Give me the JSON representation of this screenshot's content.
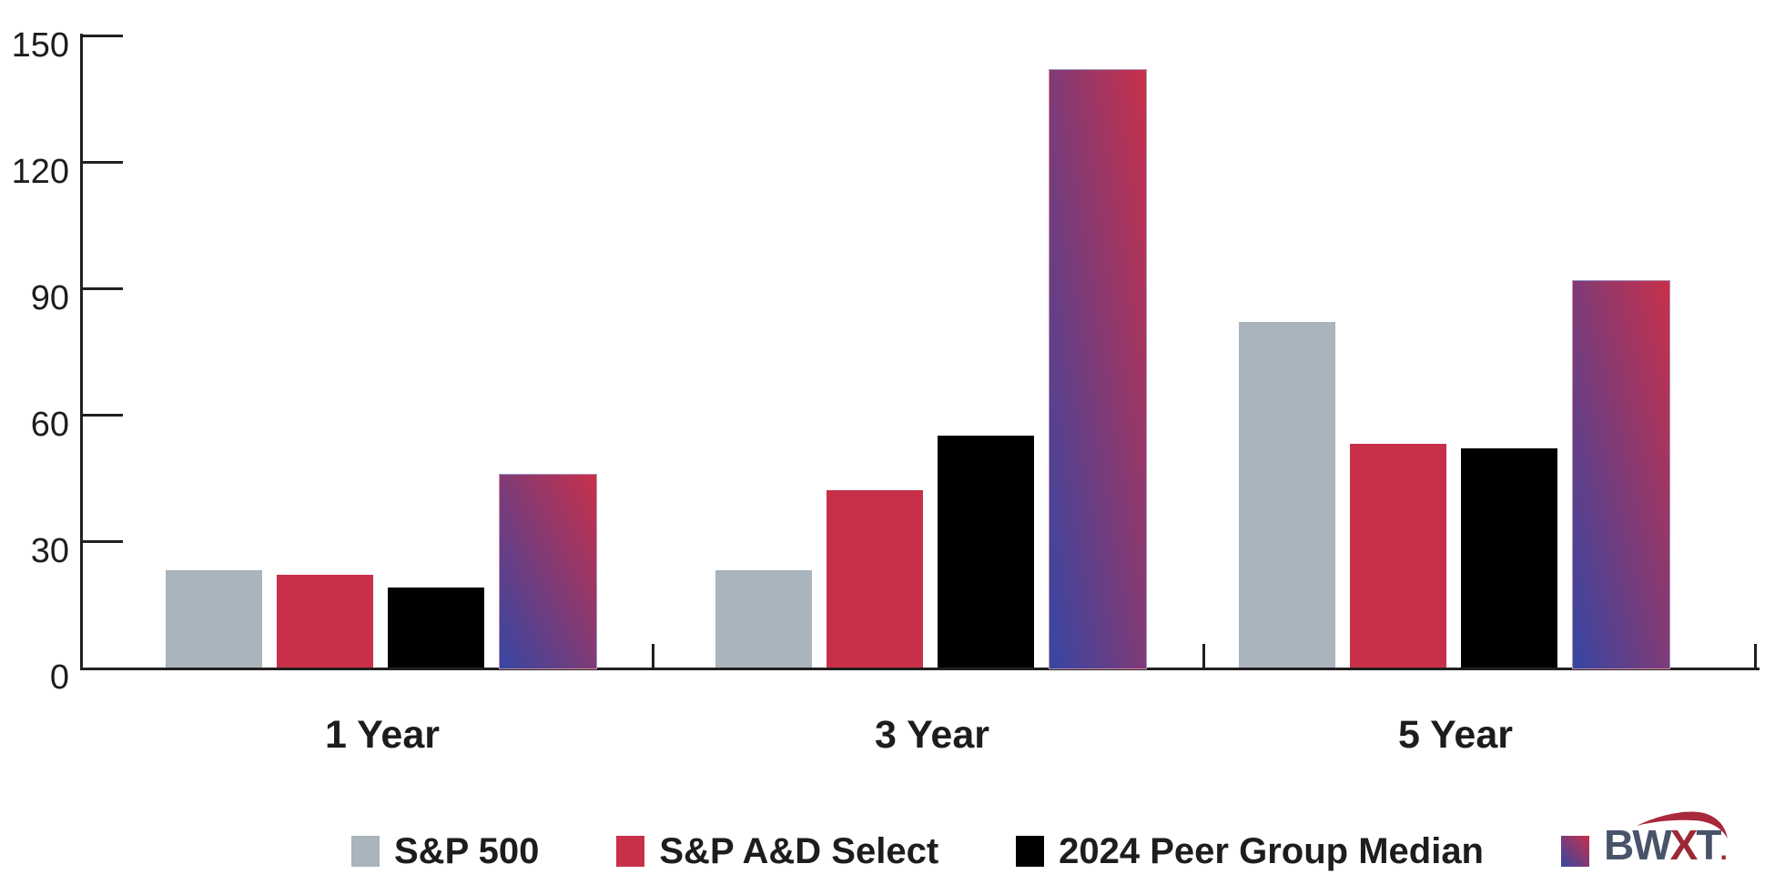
{
  "chart_data": {
    "type": "bar",
    "title": "",
    "xlabel": "",
    "ylabel": "",
    "categories": [
      "1 Year",
      "3 Year",
      "5 Year"
    ],
    "series": [
      {
        "name": "S&P 500",
        "color": "#a9b4bc",
        "values": [
          23,
          23,
          82
        ]
      },
      {
        "name": "S&P A&D Select",
        "color": "#c8304a",
        "values": [
          22,
          42,
          53
        ]
      },
      {
        "name": "2024 Peer Group Median",
        "color": "#000000",
        "values": [
          19,
          55,
          52
        ]
      },
      {
        "name": "BWXT",
        "color": "gradient",
        "gradient": {
          "from": "#3646a3",
          "to": "#c8304a",
          "direction": "to top right"
        },
        "values": [
          46,
          142,
          92
        ]
      }
    ],
    "ylim": [
      0,
      150
    ],
    "yticks": [
      0,
      30,
      60,
      90,
      120,
      150
    ],
    "grid": false,
    "legend_position": "bottom"
  },
  "legend": {
    "items": [
      {
        "label": "S&P 500",
        "swatch": "#a9b4bc"
      },
      {
        "label": "S&P A&D Select",
        "swatch": "#c8304a"
      },
      {
        "label": "2024 Peer Group Median",
        "swatch": "#000000"
      },
      {
        "label": "BWXT",
        "swatch": "gradient",
        "is_logo": true
      }
    ]
  },
  "logo": {
    "letters_left": "BW",
    "letter_x": "X",
    "letters_right": "T",
    "period": ".",
    "letter_color": "#49546a",
    "x_color": "#9d2936",
    "swoosh_color": "#a8283c"
  },
  "colors": {
    "axis": "#231f20",
    "text": "#1d1d1f",
    "background": "#ffffff"
  }
}
